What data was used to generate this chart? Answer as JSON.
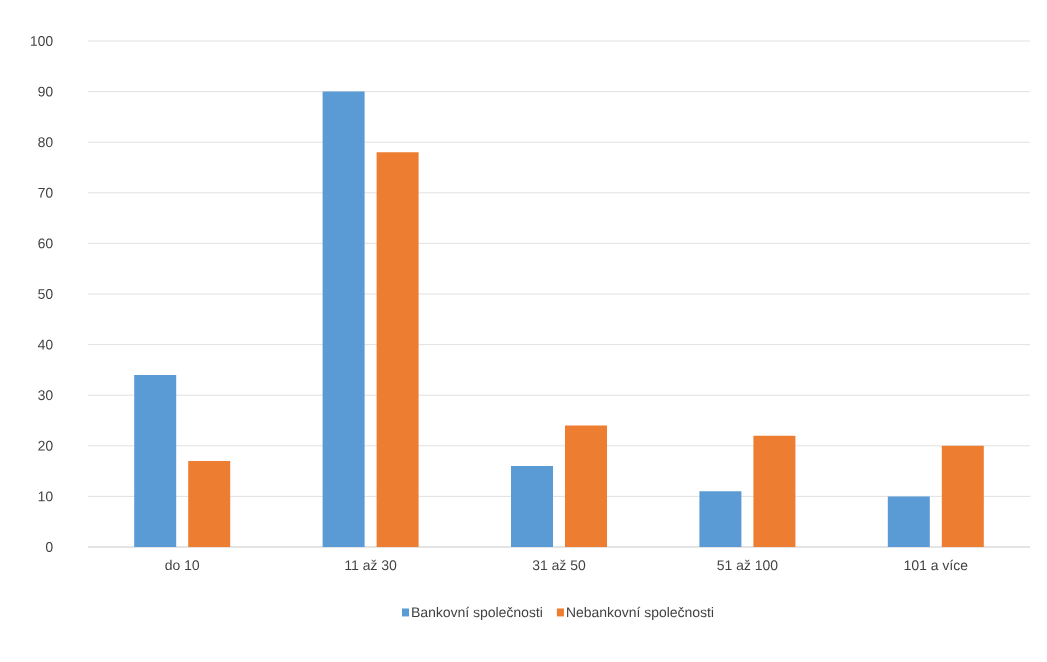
{
  "chart_data": {
    "type": "bar",
    "categories": [
      "do 10",
      "11 až 30",
      "31 až 50",
      "51 až 100",
      "101 a více"
    ],
    "series": [
      {
        "name": "Bankovní společnosti",
        "color": "#5b9bd5",
        "values": [
          34,
          90,
          16,
          11,
          10
        ]
      },
      {
        "name": "Nebankovní společnosti",
        "color": "#ed7d31",
        "values": [
          17,
          78,
          24,
          22,
          20
        ]
      }
    ],
    "ylim": [
      0,
      100
    ],
    "yticks": [
      0,
      10,
      20,
      30,
      40,
      50,
      60,
      70,
      80,
      90,
      100
    ],
    "grid": "y",
    "legend": "bottom"
  }
}
